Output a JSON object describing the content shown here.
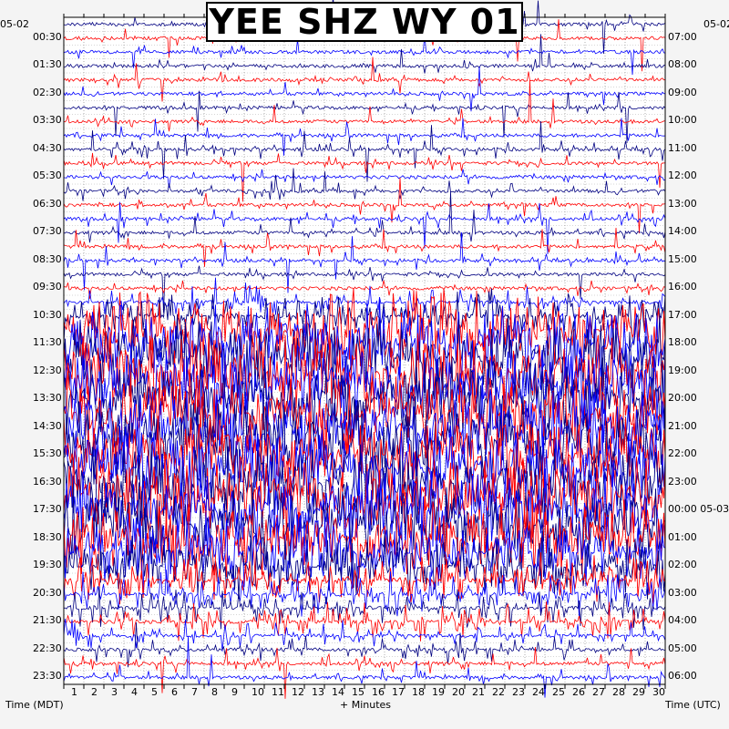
{
  "title": "YEE SHZ WY 01",
  "date_left": "05-02",
  "date_right": "05-02",
  "footer": {
    "left_axis_label": "Time (MDT)",
    "center_axis_label": "+ Minutes",
    "right_axis_label": "Time (UTC)"
  },
  "colors": {
    "trace_dark": "#000080",
    "trace_red": "#ff0000",
    "trace_blue": "#0000ff",
    "grid": "#000000",
    "background": "#f4f4f4",
    "plot_background": "#ffffff"
  },
  "chart_data": {
    "type": "heatmap",
    "title": "YEE SHZ WY 01",
    "xlabel": "+ Minutes",
    "ylabel_left": "Time (MDT)",
    "ylabel_right": "Time (UTC)",
    "xlim": [
      0,
      30
    ],
    "x_ticks": [
      "1",
      "2",
      "3",
      "4",
      "5",
      "6",
      "7",
      "8",
      "9",
      "10",
      "11",
      "12",
      "13",
      "14",
      "15",
      "16",
      "17",
      "18",
      "19",
      "20",
      "21",
      "22",
      "23",
      "24",
      "25",
      "26",
      "27",
      "28",
      "29",
      "30"
    ],
    "rows_per_hour": 2,
    "row_count": 48,
    "left_tick_labels": [
      "00:30",
      "01:30",
      "02:30",
      "03:30",
      "04:30",
      "05:30",
      "06:30",
      "07:30",
      "08:30",
      "09:30",
      "10:30",
      "11:30",
      "12:30",
      "13:30",
      "14:30",
      "15:30",
      "16:30",
      "17:30",
      "18:30",
      "19:30",
      "20:30",
      "21:30",
      "22:30",
      "23:30"
    ],
    "right_tick_labels": [
      "07:00",
      "08:00",
      "09:00",
      "10:00",
      "11:00",
      "12:00",
      "13:00",
      "14:00",
      "15:00",
      "16:00",
      "17:00",
      "18:00",
      "19:00",
      "20:00",
      "21:00",
      "22:00",
      "23:00",
      "00:00 05-03",
      "01:00",
      "02:00",
      "03:00",
      "04:00",
      "05:00",
      "06:00"
    ],
    "trace_color_cycle": [
      "#000080",
      "#ff0000",
      "#0000ff"
    ],
    "row_activity": [
      0.08,
      0.08,
      0.08,
      0.08,
      0.1,
      0.08,
      0.08,
      0.08,
      0.1,
      0.18,
      0.15,
      0.12,
      0.15,
      0.15,
      0.15,
      0.15,
      0.12,
      0.12,
      0.12,
      0.12,
      0.3,
      0.55,
      0.9,
      0.95,
      0.95,
      0.95,
      0.95,
      0.95,
      0.95,
      0.95,
      0.95,
      0.95,
      0.95,
      0.95,
      0.95,
      0.95,
      0.95,
      0.92,
      0.85,
      0.75,
      0.55,
      0.45,
      0.4,
      0.4,
      0.3,
      0.22,
      0.18,
      0.15
    ],
    "grid": true
  }
}
